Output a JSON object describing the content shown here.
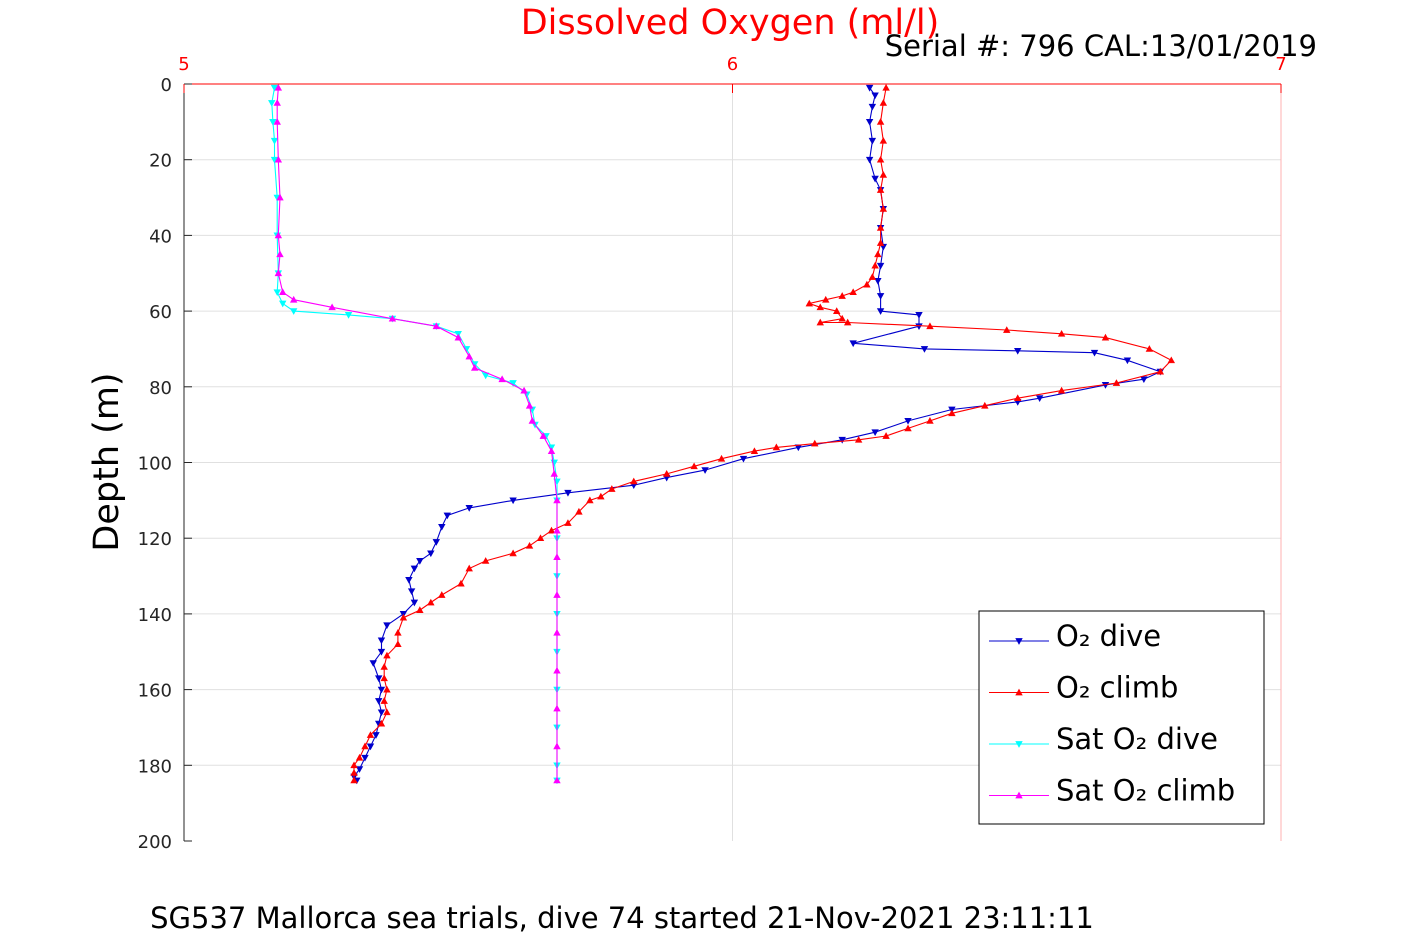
{
  "chart_data": {
    "type": "line",
    "title": "Dissolved Oxygen (ml/l)",
    "subtitle": "Serial #: 796  CAL:13/01/2019",
    "xlabel": "",
    "ylabel": "Depth (m)",
    "footer": "SG537 Mallorca sea trials, dive 74 started 21-Nov-2021 23:11:11",
    "xlim": [
      5,
      7
    ],
    "ylim": [
      0,
      200
    ],
    "y_reversed": true,
    "x_axis_position": "top",
    "x_ticks": [
      "5",
      "6",
      "7"
    ],
    "y_ticks": [
      "0",
      "20",
      "40",
      "60",
      "80",
      "100",
      "120",
      "140",
      "160",
      "180",
      "200"
    ],
    "grid": true,
    "legend_position": "bottom-right",
    "colors": {
      "title": "#ff0000",
      "x_axis": "#ff0000",
      "text": "#000000",
      "grid": "#e0e0e0"
    },
    "series": [
      {
        "name": "O₂ dive",
        "color": "#0000cc",
        "marker": "triangle-down",
        "points": [
          [
            6.25,
            1
          ],
          [
            6.26,
            3
          ],
          [
            6.255,
            6
          ],
          [
            6.25,
            10
          ],
          [
            6.255,
            15
          ],
          [
            6.25,
            20
          ],
          [
            6.26,
            25
          ],
          [
            6.27,
            28
          ],
          [
            6.275,
            33
          ],
          [
            6.27,
            38
          ],
          [
            6.275,
            43
          ],
          [
            6.27,
            48
          ],
          [
            6.265,
            52
          ],
          [
            6.27,
            56
          ],
          [
            6.27,
            60
          ],
          [
            6.34,
            61
          ],
          [
            6.34,
            64
          ],
          [
            6.22,
            68.5
          ],
          [
            6.35,
            70
          ],
          [
            6.52,
            70.5
          ],
          [
            6.66,
            71
          ],
          [
            6.72,
            73
          ],
          [
            6.78,
            76
          ],
          [
            6.75,
            78
          ],
          [
            6.68,
            79.5
          ],
          [
            6.56,
            83
          ],
          [
            6.52,
            84
          ],
          [
            6.4,
            86
          ],
          [
            6.32,
            89
          ],
          [
            6.26,
            92
          ],
          [
            6.2,
            94
          ],
          [
            6.12,
            96
          ],
          [
            6.02,
            99
          ],
          [
            5.95,
            102
          ],
          [
            5.88,
            104
          ],
          [
            5.82,
            106
          ],
          [
            5.7,
            108
          ],
          [
            5.6,
            110
          ],
          [
            5.52,
            112
          ],
          [
            5.48,
            114
          ],
          [
            5.47,
            117
          ],
          [
            5.46,
            121
          ],
          [
            5.45,
            124
          ],
          [
            5.43,
            126
          ],
          [
            5.42,
            128
          ],
          [
            5.41,
            131
          ],
          [
            5.415,
            134
          ],
          [
            5.42,
            137
          ],
          [
            5.4,
            140
          ],
          [
            5.37,
            143
          ],
          [
            5.36,
            147
          ],
          [
            5.36,
            150
          ],
          [
            5.345,
            153
          ],
          [
            5.355,
            157
          ],
          [
            5.36,
            160
          ],
          [
            5.355,
            163
          ],
          [
            5.36,
            166
          ],
          [
            5.355,
            169
          ],
          [
            5.35,
            172
          ],
          [
            5.34,
            175
          ],
          [
            5.33,
            178
          ],
          [
            5.32,
            181
          ],
          [
            5.31,
            183
          ],
          [
            5.315,
            184
          ]
        ]
      },
      {
        "name": "O₂ climb",
        "color": "#ff0000",
        "marker": "triangle-up",
        "points": [
          [
            5.31,
            184
          ],
          [
            5.31,
            182
          ],
          [
            5.31,
            180
          ],
          [
            5.32,
            178
          ],
          [
            5.33,
            175
          ],
          [
            5.34,
            172
          ],
          [
            5.36,
            169
          ],
          [
            5.37,
            166
          ],
          [
            5.365,
            163
          ],
          [
            5.37,
            160
          ],
          [
            5.365,
            157
          ],
          [
            5.365,
            154
          ],
          [
            5.37,
            151
          ],
          [
            5.39,
            148
          ],
          [
            5.39,
            145
          ],
          [
            5.4,
            141
          ],
          [
            5.43,
            139
          ],
          [
            5.45,
            137
          ],
          [
            5.47,
            135
          ],
          [
            5.505,
            132
          ],
          [
            5.52,
            128
          ],
          [
            5.55,
            126
          ],
          [
            5.6,
            124
          ],
          [
            5.63,
            122
          ],
          [
            5.65,
            120
          ],
          [
            5.67,
            118
          ],
          [
            5.7,
            116
          ],
          [
            5.72,
            113
          ],
          [
            5.74,
            110
          ],
          [
            5.76,
            109
          ],
          [
            5.78,
            107
          ],
          [
            5.82,
            105
          ],
          [
            5.88,
            103
          ],
          [
            5.93,
            101
          ],
          [
            5.98,
            99
          ],
          [
            6.04,
            97
          ],
          [
            6.08,
            96
          ],
          [
            6.15,
            95
          ],
          [
            6.23,
            94
          ],
          [
            6.28,
            93
          ],
          [
            6.32,
            91
          ],
          [
            6.36,
            89
          ],
          [
            6.4,
            87
          ],
          [
            6.46,
            85
          ],
          [
            6.52,
            83
          ],
          [
            6.6,
            81
          ],
          [
            6.7,
            79
          ],
          [
            6.78,
            76
          ],
          [
            6.8,
            73
          ],
          [
            6.76,
            70
          ],
          [
            6.68,
            67
          ],
          [
            6.6,
            66
          ],
          [
            6.5,
            65
          ],
          [
            6.36,
            64
          ],
          [
            6.21,
            63
          ],
          [
            6.16,
            63
          ],
          [
            6.2,
            62
          ],
          [
            6.19,
            60
          ],
          [
            6.16,
            59
          ],
          [
            6.14,
            58
          ],
          [
            6.17,
            57
          ],
          [
            6.2,
            56
          ],
          [
            6.22,
            55
          ],
          [
            6.245,
            53
          ],
          [
            6.255,
            51
          ],
          [
            6.26,
            48
          ],
          [
            6.265,
            45
          ],
          [
            6.27,
            42
          ],
          [
            6.27,
            38
          ],
          [
            6.275,
            33
          ],
          [
            6.27,
            28
          ],
          [
            6.275,
            24
          ],
          [
            6.27,
            20
          ],
          [
            6.275,
            15
          ],
          [
            6.27,
            10
          ],
          [
            6.275,
            5
          ],
          [
            6.28,
            1
          ]
        ]
      },
      {
        "name": "Sat O₂ dive",
        "color": "#00ffff",
        "marker": "triangle-down",
        "points": [
          [
            5.165,
            1
          ],
          [
            5.16,
            5
          ],
          [
            5.162,
            10
          ],
          [
            5.165,
            15
          ],
          [
            5.165,
            20
          ],
          [
            5.17,
            30
          ],
          [
            5.17,
            40
          ],
          [
            5.172,
            50
          ],
          [
            5.17,
            55
          ],
          [
            5.18,
            58
          ],
          [
            5.2,
            60
          ],
          [
            5.3,
            61
          ],
          [
            5.38,
            62
          ],
          [
            5.46,
            64
          ],
          [
            5.5,
            66
          ],
          [
            5.515,
            70
          ],
          [
            5.53,
            74
          ],
          [
            5.55,
            77
          ],
          [
            5.6,
            79
          ],
          [
            5.625,
            82
          ],
          [
            5.635,
            86
          ],
          [
            5.64,
            90
          ],
          [
            5.66,
            93
          ],
          [
            5.67,
            96
          ],
          [
            5.675,
            100
          ],
          [
            5.68,
            105
          ],
          [
            5.68,
            110
          ],
          [
            5.68,
            120
          ],
          [
            5.68,
            130
          ],
          [
            5.68,
            140
          ],
          [
            5.68,
            150
          ],
          [
            5.68,
            160
          ],
          [
            5.68,
            170
          ],
          [
            5.68,
            180
          ],
          [
            5.68,
            184
          ]
        ]
      },
      {
        "name": "Sat O₂ climb",
        "color": "#ff00ff",
        "marker": "triangle-up",
        "points": [
          [
            5.68,
            184
          ],
          [
            5.68,
            175
          ],
          [
            5.68,
            165
          ],
          [
            5.68,
            155
          ],
          [
            5.68,
            145
          ],
          [
            5.68,
            135
          ],
          [
            5.68,
            125
          ],
          [
            5.68,
            118
          ],
          [
            5.68,
            110
          ],
          [
            5.675,
            103
          ],
          [
            5.67,
            97
          ],
          [
            5.655,
            93
          ],
          [
            5.635,
            89
          ],
          [
            5.63,
            85
          ],
          [
            5.62,
            81
          ],
          [
            5.58,
            78
          ],
          [
            5.53,
            75
          ],
          [
            5.52,
            72
          ],
          [
            5.5,
            67
          ],
          [
            5.46,
            64
          ],
          [
            5.38,
            62
          ],
          [
            5.27,
            59
          ],
          [
            5.2,
            57
          ],
          [
            5.18,
            55
          ],
          [
            5.172,
            50
          ],
          [
            5.175,
            45
          ],
          [
            5.172,
            40
          ],
          [
            5.175,
            30
          ],
          [
            5.172,
            20
          ],
          [
            5.17,
            10
          ],
          [
            5.17,
            5
          ],
          [
            5.172,
            1
          ]
        ]
      }
    ]
  }
}
